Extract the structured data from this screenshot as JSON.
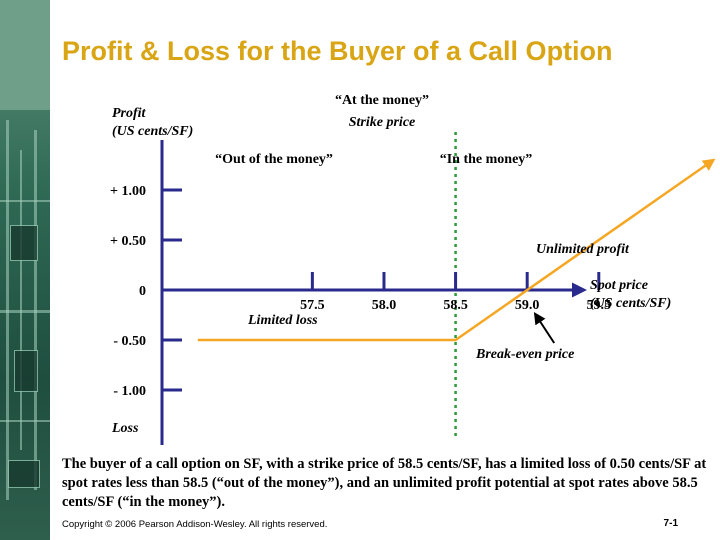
{
  "slide": {
    "title": "Profit & Loss for the Buyer of a Call Option",
    "caption": "The buyer of a call option on SF, with a strike price of 58.5 cents/SF, has a limited loss of 0.50 cents/SF at spot rates less than 58.5 (“out of the money”), and an unlimited profit potential at spot rates above 58.5 cents/SF (“in the money”).",
    "copyright": "Copyright © 2006 Pearson Addison-Wesley. All rights reserved.",
    "page_number": "7-1"
  },
  "colors": {
    "title": "#d9a514",
    "axis": "#2a2a8c",
    "payoff": "#f5a623",
    "strike_line": "#2e9a3a",
    "strike_label": "#1a8a2a"
  },
  "chart_data": {
    "type": "line",
    "ylabel": [
      "Profit",
      "(US cents/SF)"
    ],
    "ybottom_label": "Loss",
    "xlabel": [
      "Spot price",
      "(US cents/SF)"
    ],
    "x_ticks": [
      57.5,
      58.0,
      58.5,
      59.0,
      59.5
    ],
    "x_tick_labels": [
      "57.5",
      "58.0",
      "58.5",
      "59.0",
      "59.5"
    ],
    "y_ticks": [
      1.0,
      0.5,
      0,
      -0.5,
      -1.0
    ],
    "y_tick_labels": [
      "+ 1.00",
      "+ 0.50",
      "0",
      "- 0.50",
      "- 1.00"
    ],
    "xlim": [
      56.45,
      60.5
    ],
    "ylim": [
      -1.55,
      1.5
    ],
    "strike": 58.5,
    "strike_labels": [
      "“At the money”",
      "Strike price"
    ],
    "region_labels": {
      "out": "“Out of the money”",
      "in": "“In the money”"
    },
    "series": [
      {
        "x": [
          56.7,
          58.5,
          60.3
        ],
        "y": [
          -0.5,
          -0.5,
          1.3
        ]
      }
    ],
    "annotations": {
      "limited_loss": "Limited loss",
      "unlimited_profit": "Unlimited profit",
      "break_even": "Break-even price",
      "break_even_x": 59.0
    }
  }
}
